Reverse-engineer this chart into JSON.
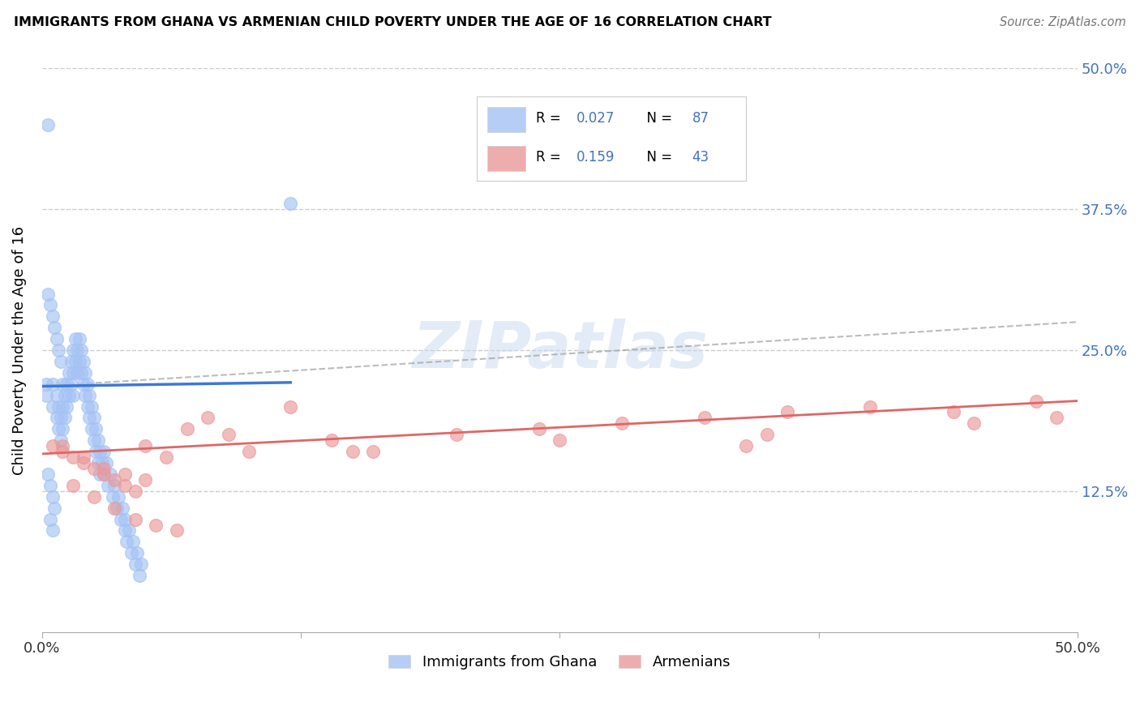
{
  "title": "IMMIGRANTS FROM GHANA VS ARMENIAN CHILD POVERTY UNDER THE AGE OF 16 CORRELATION CHART",
  "source": "Source: ZipAtlas.com",
  "ylabel": "Child Poverty Under the Age of 16",
  "xlim": [
    0.0,
    0.5
  ],
  "ylim": [
    0.0,
    0.5
  ],
  "ghana_R": 0.027,
  "ghana_N": 87,
  "armenian_R": 0.159,
  "armenian_N": 43,
  "ghana_color": "#a4c2f4",
  "armenian_color": "#ea9999",
  "ghana_line_color": "#3c78d8",
  "armenian_line_color": "#e06666",
  "dashed_line_color": "#a0a0a0",
  "grid_color": "#cccccc",
  "right_tick_color": "#4472c4",
  "watermark_text": "ZIPatlas",
  "legend1_label": "Immigrants from Ghana",
  "legend2_label": "Armenians",
  "ytick_positions": [
    0.125,
    0.25,
    0.375,
    0.5
  ],
  "ytick_labels": [
    "12.5%",
    "25.0%",
    "37.5%",
    "50.0%"
  ],
  "ghana_x": [
    0.005,
    0.005,
    0.007,
    0.007,
    0.008,
    0.008,
    0.009,
    0.009,
    0.01,
    0.01,
    0.01,
    0.011,
    0.011,
    0.012,
    0.012,
    0.013,
    0.013,
    0.014,
    0.014,
    0.015,
    0.015,
    0.015,
    0.016,
    0.016,
    0.017,
    0.017,
    0.018,
    0.018,
    0.019,
    0.019,
    0.02,
    0.02,
    0.021,
    0.021,
    0.022,
    0.022,
    0.023,
    0.023,
    0.024,
    0.024,
    0.025,
    0.025,
    0.026,
    0.026,
    0.027,
    0.027,
    0.028,
    0.028,
    0.029,
    0.03,
    0.03,
    0.031,
    0.032,
    0.033,
    0.034,
    0.035,
    0.036,
    0.037,
    0.038,
    0.039,
    0.04,
    0.04,
    0.041,
    0.042,
    0.043,
    0.044,
    0.045,
    0.046,
    0.047,
    0.048,
    0.003,
    0.004,
    0.005,
    0.006,
    0.007,
    0.008,
    0.009,
    0.003,
    0.004,
    0.005,
    0.006,
    0.002,
    0.002,
    0.003,
    0.12,
    0.004,
    0.005
  ],
  "ghana_y": [
    0.22,
    0.2,
    0.21,
    0.19,
    0.2,
    0.18,
    0.19,
    0.17,
    0.22,
    0.2,
    0.18,
    0.21,
    0.19,
    0.22,
    0.2,
    0.23,
    0.21,
    0.24,
    0.22,
    0.25,
    0.23,
    0.21,
    0.26,
    0.24,
    0.25,
    0.23,
    0.26,
    0.24,
    0.25,
    0.23,
    0.24,
    0.22,
    0.23,
    0.21,
    0.22,
    0.2,
    0.21,
    0.19,
    0.2,
    0.18,
    0.19,
    0.17,
    0.18,
    0.16,
    0.17,
    0.15,
    0.16,
    0.14,
    0.15,
    0.16,
    0.14,
    0.15,
    0.13,
    0.14,
    0.12,
    0.13,
    0.11,
    0.12,
    0.1,
    0.11,
    0.09,
    0.1,
    0.08,
    0.09,
    0.07,
    0.08,
    0.06,
    0.07,
    0.05,
    0.06,
    0.3,
    0.29,
    0.28,
    0.27,
    0.26,
    0.25,
    0.24,
    0.14,
    0.13,
    0.12,
    0.11,
    0.22,
    0.21,
    0.45,
    0.38,
    0.1,
    0.09
  ],
  "armenian_x": [
    0.005,
    0.01,
    0.015,
    0.02,
    0.025,
    0.03,
    0.035,
    0.04,
    0.045,
    0.05,
    0.06,
    0.07,
    0.08,
    0.09,
    0.1,
    0.12,
    0.14,
    0.16,
    0.2,
    0.24,
    0.28,
    0.32,
    0.36,
    0.4,
    0.44,
    0.48,
    0.015,
    0.025,
    0.035,
    0.045,
    0.055,
    0.065,
    0.15,
    0.25,
    0.35,
    0.45,
    0.01,
    0.02,
    0.03,
    0.04,
    0.05,
    0.34,
    0.49
  ],
  "armenian_y": [
    0.165,
    0.16,
    0.155,
    0.15,
    0.145,
    0.14,
    0.135,
    0.13,
    0.125,
    0.165,
    0.155,
    0.18,
    0.19,
    0.175,
    0.16,
    0.2,
    0.17,
    0.16,
    0.175,
    0.18,
    0.185,
    0.19,
    0.195,
    0.2,
    0.195,
    0.205,
    0.13,
    0.12,
    0.11,
    0.1,
    0.095,
    0.09,
    0.16,
    0.17,
    0.175,
    0.185,
    0.165,
    0.155,
    0.145,
    0.14,
    0.135,
    0.165,
    0.19
  ]
}
